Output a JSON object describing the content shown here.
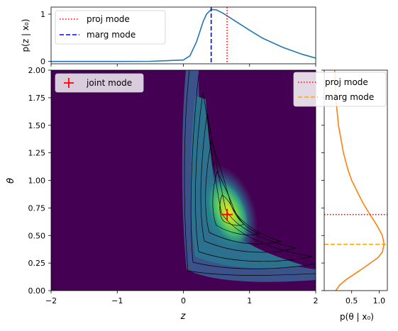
{
  "chart_data": [
    {
      "id": "top",
      "type": "line",
      "title": "",
      "xlabel": "",
      "ylabel": "p(z | x₀)",
      "xlim": [
        -2,
        2
      ],
      "ylim": [
        -0.05,
        1.15
      ],
      "yticks": [
        0,
        1
      ],
      "series": [
        {
          "name": "",
          "color": "#1f77b4",
          "x": [
            -2.0,
            -1.5,
            -1.0,
            -0.5,
            0.0,
            0.1,
            0.2,
            0.3,
            0.35,
            0.42,
            0.5,
            0.6,
            0.7,
            0.8,
            1.0,
            1.2,
            1.5,
            1.8,
            2.0
          ],
          "y": [
            0.0,
            0.0,
            0.0,
            0.002,
            0.03,
            0.12,
            0.42,
            0.85,
            1.0,
            1.1,
            1.09,
            1.02,
            0.93,
            0.84,
            0.66,
            0.49,
            0.3,
            0.15,
            0.07
          ]
        }
      ],
      "vlines": [
        {
          "name": "proj mode",
          "x": 0.66,
          "color": "#ff0000",
          "style": "dotted"
        },
        {
          "name": "marg mode",
          "x": 0.42,
          "color": "#0000ff",
          "style": "dashed"
        }
      ],
      "legend": {
        "placement": "top-left",
        "entries": [
          "proj mode",
          "marg mode"
        ]
      }
    },
    {
      "id": "main",
      "type": "heatmap",
      "title": "",
      "xlabel": "z",
      "ylabel": "θ",
      "xlim": [
        -2,
        2
      ],
      "ylim": [
        0,
        2
      ],
      "xticks": [
        -2,
        -1,
        0,
        1,
        2
      ],
      "yticks": [
        "0.00",
        "0.25",
        "0.50",
        "0.75",
        "1.00",
        "1.25",
        "1.50",
        "1.75",
        "2.00"
      ],
      "colormap": "viridis",
      "contours": 6,
      "joint_mode": {
        "name": "joint mode",
        "z": 0.66,
        "theta": 0.69,
        "color": "#ff0000",
        "marker": "+"
      },
      "legend": {
        "placement": "top-left",
        "entries": [
          "joint mode"
        ]
      }
    },
    {
      "id": "right",
      "type": "line",
      "title": "",
      "xlabel": "p(θ | x₀)",
      "ylabel": "",
      "xlim": [
        0,
        1.15
      ],
      "ylim": [
        0,
        2
      ],
      "xticks": [
        "0.5",
        "1.0"
      ],
      "series": [
        {
          "name": "",
          "color": "#ff7f0e",
          "theta": [
            0.0,
            0.05,
            0.1,
            0.2,
            0.3,
            0.35,
            0.42,
            0.5,
            0.6,
            0.7,
            0.8,
            0.9,
            1.0,
            1.1,
            1.25,
            1.5,
            1.75,
            2.0
          ],
          "density": [
            0.21,
            0.28,
            0.4,
            0.7,
            0.98,
            1.06,
            1.09,
            1.06,
            0.95,
            0.82,
            0.7,
            0.6,
            0.5,
            0.43,
            0.35,
            0.26,
            0.21,
            0.19
          ]
        }
      ],
      "hlines": [
        {
          "name": "proj mode",
          "theta": 0.69,
          "color": "#ff0000",
          "style": "dotted"
        },
        {
          "name": "marg mode",
          "theta": 0.42,
          "color": "#ffa500",
          "style": "dashed"
        }
      ],
      "legend": {
        "placement": "top-right",
        "entries": [
          "proj mode",
          "marg mode"
        ]
      }
    }
  ]
}
